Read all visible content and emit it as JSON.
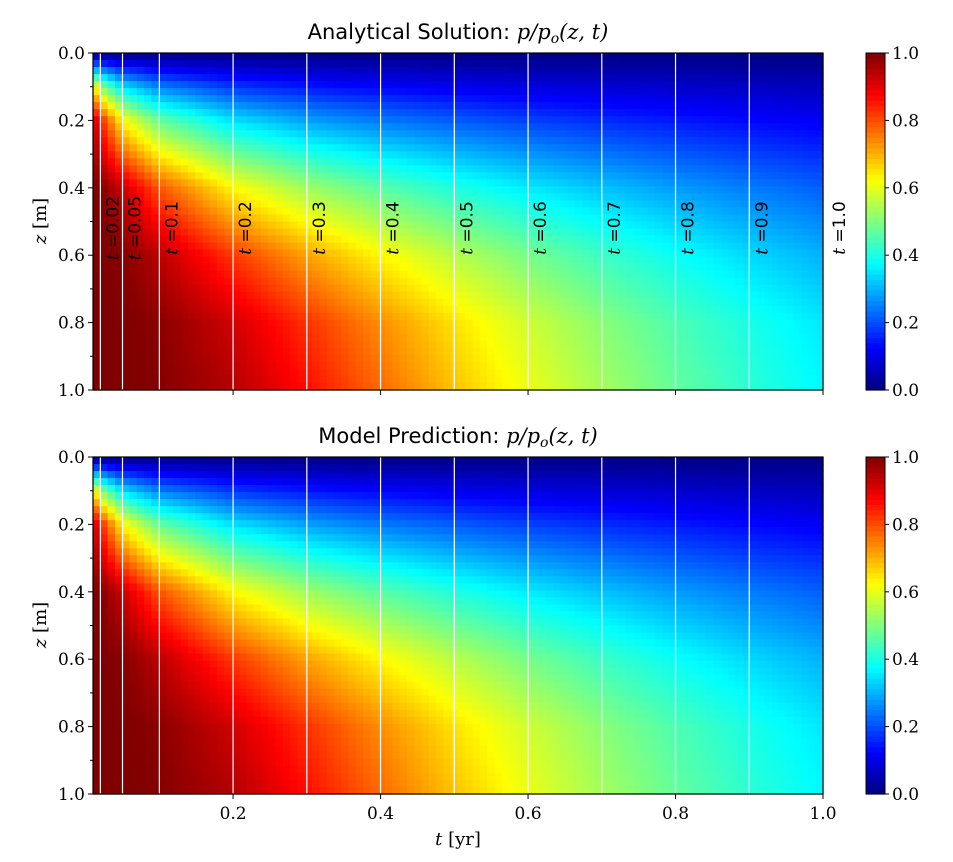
{
  "chart_data": [
    {
      "type": "heatmap",
      "title": {
        "prefix": "Analytical Solution: ",
        "math_main": "p/p",
        "math_sub": "o",
        "math_args": "(z, t)"
      },
      "xlabel": {
        "var": "t",
        "unit": "[yr]"
      },
      "ylabel": {
        "var": "z",
        "unit": "[m]"
      },
      "xlim": [
        0.01,
        1.0
      ],
      "ylim": [
        1.0,
        0.0
      ],
      "xticks": [
        "0.2",
        "0.4",
        "0.6",
        "0.8",
        "1.0"
      ],
      "yticks": [
        "0.0",
        "0.2",
        "0.4",
        "0.6",
        "0.8",
        "1.0"
      ],
      "colormap": "jet",
      "clim": [
        0.0,
        1.0
      ],
      "colorbar_ticks": [
        "0.0",
        "0.2",
        "0.4",
        "0.6",
        "0.8",
        "1.0"
      ],
      "time_lines": [
        0.02,
        0.05,
        0.1,
        0.2,
        0.3,
        0.4,
        0.5,
        0.6,
        0.7,
        0.8,
        0.9
      ],
      "time_line_color": "#ffffff",
      "time_labels": [
        "t =0.02",
        "t =0.05",
        "t =0.1",
        "t =0.2",
        "t =0.3",
        "t =0.4",
        "t =0.5",
        "t =0.6",
        "t =0.7",
        "t =0.8",
        "t =0.9",
        "t =1.0"
      ],
      "time_label_values": [
        0.02,
        0.05,
        0.1,
        0.2,
        0.3,
        0.4,
        0.5,
        0.6,
        0.7,
        0.8,
        0.9,
        1.0
      ],
      "grid_t": [
        0.01,
        0.02,
        0.05,
        0.1,
        0.2,
        0.3,
        0.4,
        0.5,
        0.6,
        0.7,
        0.8,
        0.9,
        1.0
      ],
      "grid_z": [
        0.0,
        0.1,
        0.2,
        0.4,
        0.6,
        0.8,
        1.0
      ],
      "values": [
        [
          0,
          0,
          0,
          0,
          0,
          0,
          0,
          0,
          0,
          0,
          0,
          0,
          0
        ],
        [
          0.683,
          0.52,
          0.345,
          0.248,
          0.177,
          0.144,
          0.124,
          0.108,
          0.095,
          0.084,
          0.074,
          0.066,
          0.058
        ],
        [
          0.954,
          0.843,
          0.628,
          0.473,
          0.345,
          0.284,
          0.244,
          0.214,
          0.188,
          0.166,
          0.147,
          0.13,
          0.115
        ],
        [
          1.0,
          0.995,
          0.927,
          0.794,
          0.628,
          0.531,
          0.462,
          0.406,
          0.357,
          0.316,
          0.279,
          0.247,
          0.218
        ],
        [
          1.0,
          1.0,
          0.993,
          0.943,
          0.82,
          0.716,
          0.63,
          0.556,
          0.491,
          0.434,
          0.384,
          0.339,
          0.3
        ],
        [
          1.0,
          1.0,
          1.0,
          0.989,
          0.92,
          0.827,
          0.736,
          0.652,
          0.577,
          0.51,
          0.451,
          0.399,
          0.353
        ],
        [
          1.0,
          1.0,
          1.0,
          0.996,
          0.95,
          0.864,
          0.772,
          0.685,
          0.607,
          0.537,
          0.474,
          0.419,
          0.371
        ]
      ]
    },
    {
      "type": "heatmap",
      "title": {
        "prefix": "Model Prediction: ",
        "math_main": "p/p",
        "math_sub": "o",
        "math_args": "(z, t)"
      },
      "xlabel": {
        "var": "t",
        "unit": "[yr]"
      },
      "ylabel": {
        "var": "z",
        "unit": "[m]"
      },
      "xlim": [
        0.01,
        1.0
      ],
      "ylim": [
        1.0,
        0.0
      ],
      "xticks": [
        "0.2",
        "0.4",
        "0.6",
        "0.8",
        "1.0"
      ],
      "yticks": [
        "0.0",
        "0.2",
        "0.4",
        "0.6",
        "0.8",
        "1.0"
      ],
      "colormap": "jet",
      "clim": [
        0.0,
        1.0
      ],
      "colorbar_ticks": [
        "0.0",
        "0.2",
        "0.4",
        "0.6",
        "0.8",
        "1.0"
      ],
      "time_lines": [
        0.02,
        0.05,
        0.1,
        0.2,
        0.3,
        0.4,
        0.5,
        0.6,
        0.7,
        0.8,
        0.9
      ],
      "time_line_color": "#ffffff",
      "grid_t": [
        0.01,
        0.02,
        0.05,
        0.1,
        0.2,
        0.3,
        0.4,
        0.5,
        0.6,
        0.7,
        0.8,
        0.9,
        1.0
      ],
      "grid_z": [
        0.0,
        0.1,
        0.2,
        0.4,
        0.6,
        0.8,
        1.0
      ],
      "values": [
        [
          0,
          0,
          0,
          0,
          0,
          0,
          0,
          0,
          0,
          0,
          0,
          0,
          0
        ],
        [
          0.683,
          0.52,
          0.345,
          0.248,
          0.177,
          0.144,
          0.124,
          0.108,
          0.095,
          0.084,
          0.074,
          0.066,
          0.058
        ],
        [
          0.954,
          0.843,
          0.628,
          0.473,
          0.345,
          0.284,
          0.244,
          0.214,
          0.188,
          0.166,
          0.147,
          0.13,
          0.115
        ],
        [
          1.0,
          0.995,
          0.927,
          0.794,
          0.628,
          0.531,
          0.462,
          0.406,
          0.357,
          0.316,
          0.279,
          0.247,
          0.218
        ],
        [
          1.0,
          1.0,
          0.993,
          0.943,
          0.82,
          0.716,
          0.63,
          0.556,
          0.491,
          0.434,
          0.384,
          0.339,
          0.3
        ],
        [
          1.0,
          1.0,
          1.0,
          0.989,
          0.92,
          0.827,
          0.736,
          0.652,
          0.577,
          0.51,
          0.451,
          0.399,
          0.353
        ],
        [
          1.0,
          1.0,
          1.0,
          0.996,
          0.95,
          0.864,
          0.772,
          0.685,
          0.607,
          0.537,
          0.474,
          0.419,
          0.371
        ]
      ]
    }
  ]
}
